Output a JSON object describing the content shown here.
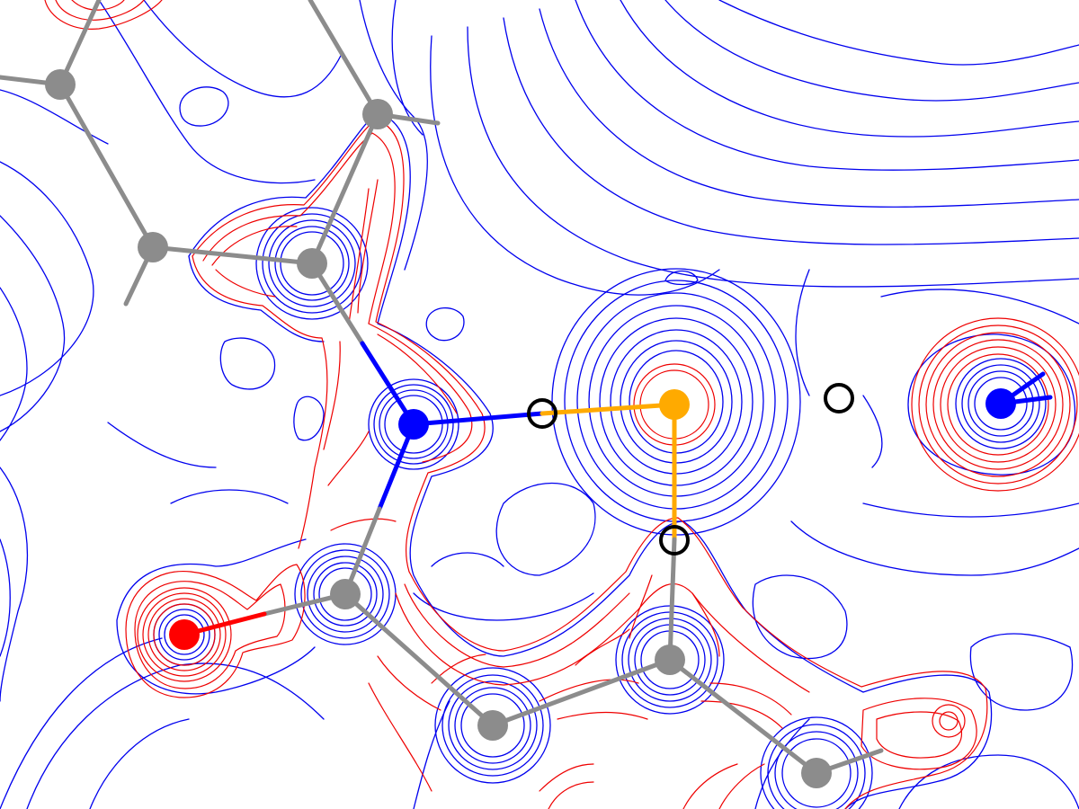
{
  "figure": {
    "kind": "contour-map",
    "colors": {
      "negative_contour": "#0000ee",
      "positive_contour": "#ee0000",
      "carbon": "#8c8c8c",
      "nitrogen": "#0000ff",
      "oxygen": "#ff0000",
      "metal": "#ffaa00",
      "critical_point": "#000000",
      "background": "#ffffff"
    }
  },
  "atoms": [
    {
      "id": "c1",
      "element": "C",
      "color": "carbon"
    },
    {
      "id": "c2",
      "element": "C",
      "color": "carbon"
    },
    {
      "id": "c3",
      "element": "C",
      "color": "carbon"
    },
    {
      "id": "c4",
      "element": "C",
      "color": "carbon"
    },
    {
      "id": "c5",
      "element": "C",
      "color": "carbon"
    },
    {
      "id": "c6",
      "element": "C",
      "color": "carbon"
    },
    {
      "id": "c7",
      "element": "C",
      "color": "carbon"
    },
    {
      "id": "c8",
      "element": "C",
      "color": "carbon"
    },
    {
      "id": "n1",
      "element": "N",
      "color": "nitrogen"
    },
    {
      "id": "n2",
      "element": "N",
      "color": "nitrogen"
    },
    {
      "id": "o1",
      "element": "O",
      "color": "oxygen"
    },
    {
      "id": "m1",
      "element": "metal",
      "color": "metal"
    }
  ],
  "critical_points": [
    {
      "id": "bcp1"
    },
    {
      "id": "bcp2"
    },
    {
      "id": "bcp3"
    }
  ]
}
